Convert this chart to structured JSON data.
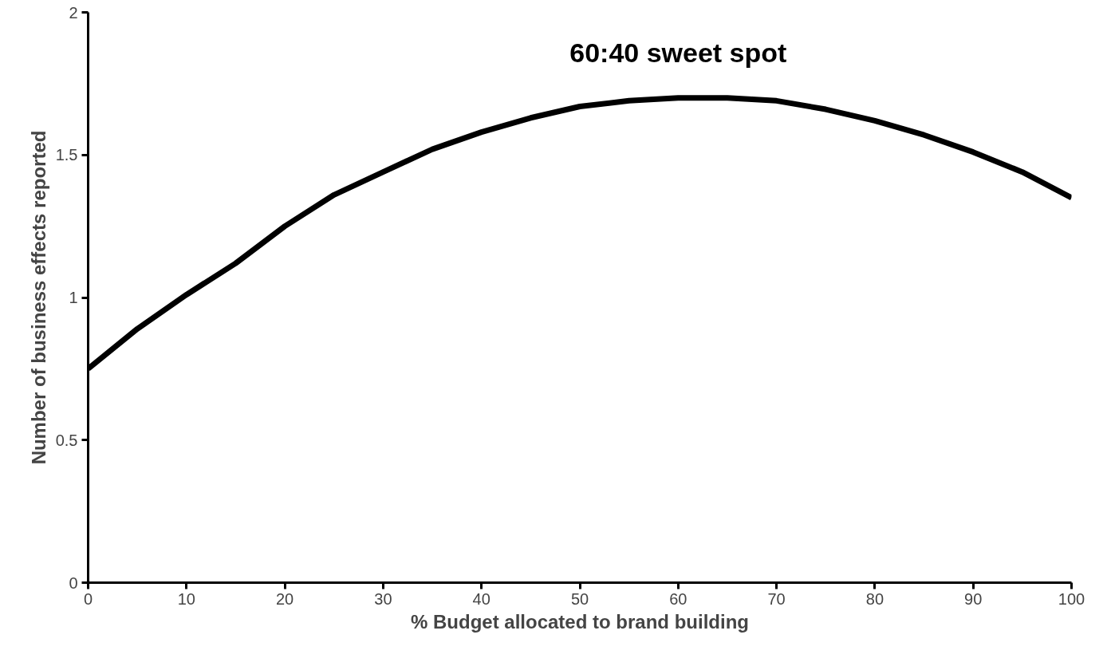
{
  "chart_data": {
    "type": "line",
    "xlabel": "% Budget allocated to brand building",
    "ylabel": "Number of business effects reported",
    "annotations": [
      "60:40 sweet spot"
    ],
    "x": [
      0,
      5,
      10,
      15,
      20,
      25,
      30,
      35,
      40,
      45,
      50,
      55,
      60,
      65,
      70,
      75,
      80,
      85,
      90,
      95,
      100
    ],
    "series": [
      {
        "color": "#000000",
        "values": [
          0.75,
          0.89,
          1.01,
          1.12,
          1.25,
          1.36,
          1.44,
          1.52,
          1.58,
          1.63,
          1.67,
          1.69,
          1.7,
          1.7,
          1.69,
          1.66,
          1.62,
          1.57,
          1.51,
          1.44,
          1.35
        ]
      }
    ],
    "xlim": [
      0,
      100
    ],
    "xticks": [
      0,
      10,
      20,
      30,
      40,
      50,
      60,
      70,
      80,
      90,
      100
    ],
    "ylim": [
      0,
      2
    ],
    "yticks": [
      0,
      0.5,
      1,
      1.5,
      2
    ],
    "line_style": "solid"
  }
}
